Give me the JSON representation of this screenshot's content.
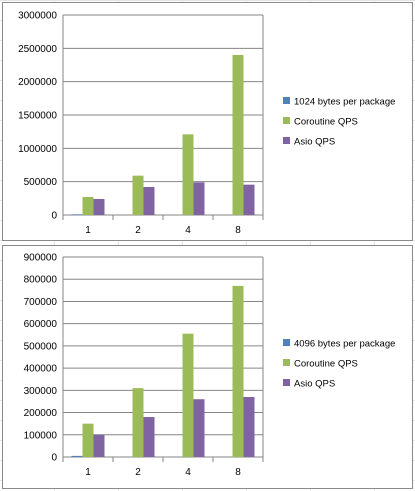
{
  "chart_data": [
    {
      "type": "bar",
      "categories": [
        "1",
        "2",
        "4",
        "8"
      ],
      "series": [
        {
          "name": "1024 bytes per package",
          "color": "#4f81bd",
          "values": [
            10000,
            0,
            0,
            0
          ]
        },
        {
          "name": "Coroutine QPS",
          "color": "#9bbb59",
          "values": [
            270000,
            590000,
            1210000,
            2400000
          ]
        },
        {
          "name": "Asio QPS",
          "color": "#8064a2",
          "values": [
            240000,
            420000,
            490000,
            455000
          ]
        }
      ],
      "yticks": [
        "0",
        "500000",
        "1000000",
        "1500000",
        "2000000",
        "2500000",
        "3000000"
      ],
      "ylim": [
        0,
        3000000
      ],
      "legend": "right",
      "grid": true
    },
    {
      "type": "bar",
      "categories": [
        "1",
        "2",
        "4",
        "8"
      ],
      "series": [
        {
          "name": "4096 bytes per package",
          "color": "#4f81bd",
          "values": [
            5000,
            0,
            0,
            0
          ]
        },
        {
          "name": "Coroutine QPS",
          "color": "#9bbb59",
          "values": [
            150000,
            310000,
            555000,
            770000
          ]
        },
        {
          "name": "Asio QPS",
          "color": "#8064a2",
          "values": [
            100000,
            180000,
            260000,
            270000
          ]
        }
      ],
      "yticks": [
        "0",
        "100000",
        "200000",
        "300000",
        "400000",
        "500000",
        "600000",
        "700000",
        "800000",
        "900000"
      ],
      "ylim": [
        0,
        900000
      ],
      "legend": "right",
      "grid": true
    }
  ]
}
